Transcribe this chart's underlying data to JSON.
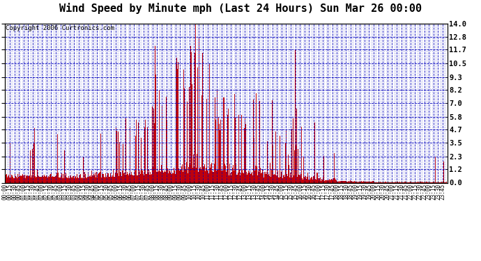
{
  "title": "Wind Speed by Minute mph (Last 24 Hours) Sun Mar 26 00:00",
  "copyright_text": "Copyright 2006 Curtronics.com",
  "yticks": [
    0.0,
    1.2,
    2.3,
    3.5,
    4.7,
    5.8,
    7.0,
    8.2,
    9.3,
    10.5,
    11.7,
    12.8,
    14.0
  ],
  "ymax": 14.0,
  "ymin": 0.0,
  "bar_color": "#cc0000",
  "grid_color": "#0000bb",
  "background_color": "#ffffff",
  "plot_bg_color": "#ffffff",
  "title_fontsize": 11,
  "copyright_fontsize": 6.5,
  "xtick_fontsize": 5.5,
  "ytick_fontsize": 7.5,
  "minutes_per_day": 1440,
  "x_tick_interval": 15,
  "seed": 123
}
